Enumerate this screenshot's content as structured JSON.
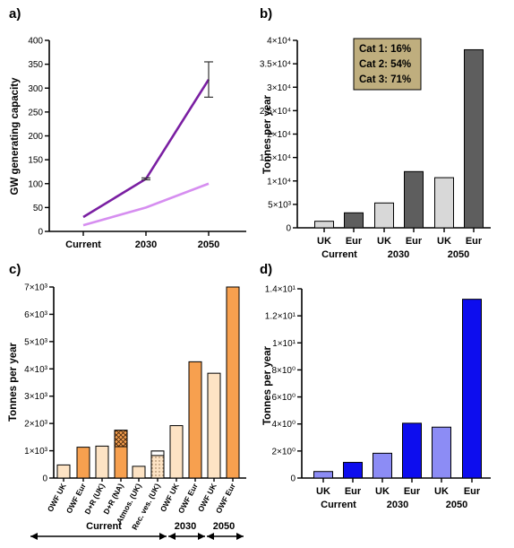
{
  "chart_data": [
    {
      "panel": "a)",
      "type": "line",
      "ylabel": "GW generating capacity",
      "categories": [
        "Current",
        "2030",
        "2050"
      ],
      "ylim": [
        0,
        400
      ],
      "yticks": [
        "0",
        "50",
        "100",
        "150",
        "200",
        "250",
        "300",
        "350",
        "400"
      ],
      "series": [
        {
          "color": "#7a1fa2",
          "values": [
            30,
            110,
            318
          ],
          "error": [
            null,
            2,
            37
          ]
        },
        {
          "color": "#d68ef0",
          "values": [
            13,
            50,
            100
          ]
        }
      ]
    },
    {
      "panel": "b)",
      "type": "bar",
      "ylabel": "Tonnes per year",
      "ylim": [
        0,
        40000
      ],
      "yticks": [
        "0",
        "5×10³",
        "1×10⁴",
        "1.5×10⁴",
        "2×10⁴",
        "2.5×10⁴",
        "3×10⁴",
        "3.5×10⁴",
        "4×10⁴"
      ],
      "categories": [
        "UK",
        "Eur",
        "UK",
        "Eur",
        "UK",
        "Eur"
      ],
      "groups": [
        "Current",
        "2030",
        "2050"
      ],
      "values": [
        1400,
        3200,
        5300,
        12000,
        10700,
        38000
      ],
      "colors": [
        "#d8d8d8",
        "#5e5e5e",
        "#d8d8d8",
        "#5e5e5e",
        "#d8d8d8",
        "#5e5e5e"
      ],
      "legend": [
        "Cat 1: 16%",
        "Cat 2: 54%",
        "Cat 3: 71%"
      ],
      "legend_color": "#bfae7e"
    },
    {
      "panel": "c)",
      "type": "bar",
      "ylabel": "Tonnes per year",
      "ylim": [
        0,
        7000
      ],
      "yticks": [
        "0",
        "1×10³",
        "2×10³",
        "3×10³",
        "4×10³",
        "5×10³",
        "6×10³",
        "7×10³"
      ],
      "categories": [
        "OWF UK",
        "OWF Eur",
        "D+R (UK)",
        "D+R (NA)",
        "Atmos. (UK)",
        "Rec. ves. (UK)",
        "OWF UK",
        "OWF Eur",
        "OWF UK",
        "OWF Eur"
      ],
      "values": [
        480,
        1130,
        1170,
        1750,
        430,
        990,
        1920,
        4260,
        3840,
        7000
      ],
      "colors": [
        "#fde3c4",
        "#f7a04f",
        "#fde3c4",
        "#f7a04f",
        "#fde3c4",
        "#fde3c4",
        "#fde3c4",
        "#f7a04f",
        "#fde3c4",
        "#f7a04f"
      ],
      "groups": [
        "Current",
        "2030",
        "2050"
      ]
    },
    {
      "panel": "d)",
      "type": "bar",
      "ylabel": "Tonnes per year",
      "ylim": [
        0,
        14.5
      ],
      "yticks": [
        "0",
        "2×10⁰",
        "4×10⁰",
        "6×10⁰",
        "8×10⁰",
        "1×10¹",
        "1.2×10¹",
        "1.4×10¹"
      ],
      "categories": [
        "UK",
        "Eur",
        "UK",
        "Eur",
        "UK",
        "Eur"
      ],
      "groups": [
        "Current",
        "2030",
        "2050"
      ],
      "values": [
        0.5,
        1.2,
        1.9,
        4.2,
        3.9,
        13.7
      ],
      "colors": [
        "#8c8cf5",
        "#0d0dee",
        "#8c8cf5",
        "#0d0dee",
        "#8c8cf5",
        "#0d0dee"
      ]
    }
  ]
}
